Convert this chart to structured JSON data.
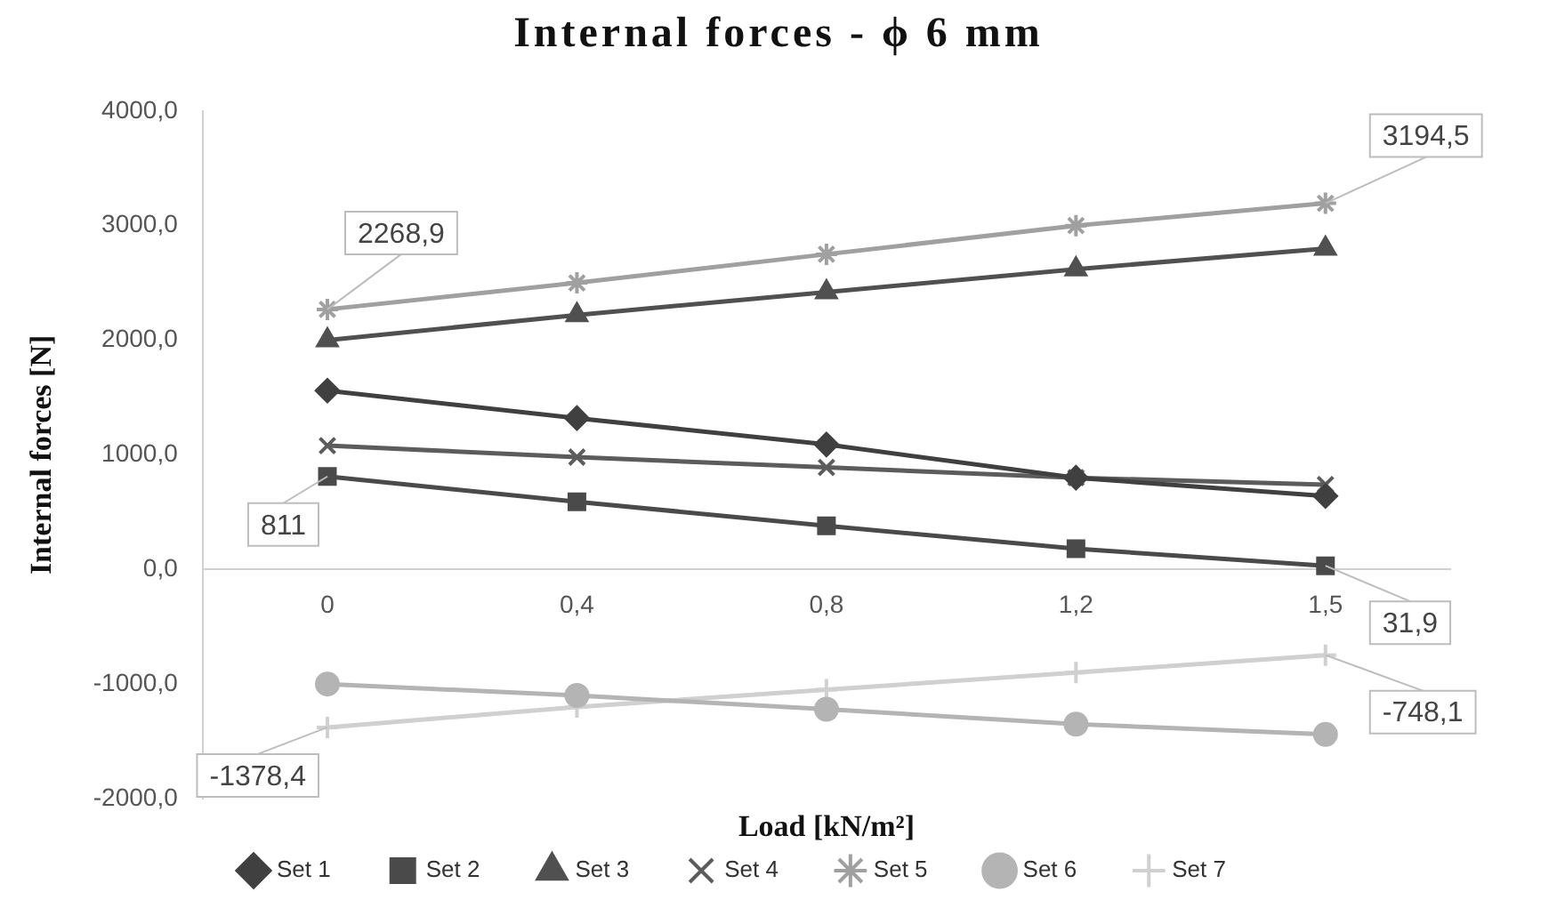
{
  "chart_data": {
    "type": "line",
    "title": "Internal forces - ϕ 6 mm",
    "xlabel": "Load [kN/m²]",
    "ylabel": "Internal forces [N]",
    "categories": [
      "0",
      "0,4",
      "0,8",
      "1,2",
      "1,5"
    ],
    "series": [
      {
        "name": "Set 1",
        "color": "#404040",
        "marker": "diamond",
        "values": [
          1560,
          1320,
          1090,
          800,
          640
        ]
      },
      {
        "name": "Set 2",
        "color": "#4a4a4a",
        "marker": "square",
        "values": [
          811,
          590,
          380,
          180,
          31.9
        ]
      },
      {
        "name": "Set 3",
        "color": "#505050",
        "marker": "triangle",
        "values": [
          2000,
          2220,
          2420,
          2620,
          2800
        ]
      },
      {
        "name": "Set 4",
        "color": "#5c5c5c",
        "marker": "x",
        "values": [
          1080,
          980,
          890,
          800,
          740
        ]
      },
      {
        "name": "Set 5",
        "color": "#a0a0a0",
        "marker": "cross",
        "values": [
          2268.9,
          2500,
          2750,
          3000,
          3194.5
        ]
      },
      {
        "name": "Set 6",
        "color": "#b4b4b4",
        "marker": "circle",
        "values": [
          -1000,
          -1100,
          -1220,
          -1350,
          -1440
        ]
      },
      {
        "name": "Set 7",
        "color": "#d0d0d0",
        "marker": "plus",
        "values": [
          -1378.4,
          -1200,
          -1050,
          -900,
          -748.1
        ]
      }
    ],
    "ylim": [
      -2000,
      4000
    ],
    "yticks": [
      {
        "value": -2000,
        "label": "-2000,0"
      },
      {
        "value": -1000,
        "label": "-1000,0"
      },
      {
        "value": 0,
        "label": "0,0"
      },
      {
        "value": 1000,
        "label": "1000,0"
      },
      {
        "value": 2000,
        "label": "2000,0"
      },
      {
        "value": 3000,
        "label": "3000,0"
      },
      {
        "value": 4000,
        "label": "4000,0"
      }
    ],
    "annotations": [
      {
        "text": "2268,9",
        "x": "0",
        "y": 2268.9
      },
      {
        "text": "811",
        "x": "0",
        "y": 811
      },
      {
        "text": "-1378,4",
        "x": "0",
        "y": -1378.4
      },
      {
        "text": "3194,5",
        "x": "1,5",
        "y": 3194.5
      },
      {
        "text": "31,9",
        "x": "1,5",
        "y": 31.9
      },
      {
        "text": "-748,1",
        "x": "1,5",
        "y": -748.1
      }
    ],
    "grid": false,
    "legend": "bottom",
    "line_style": "solid"
  }
}
